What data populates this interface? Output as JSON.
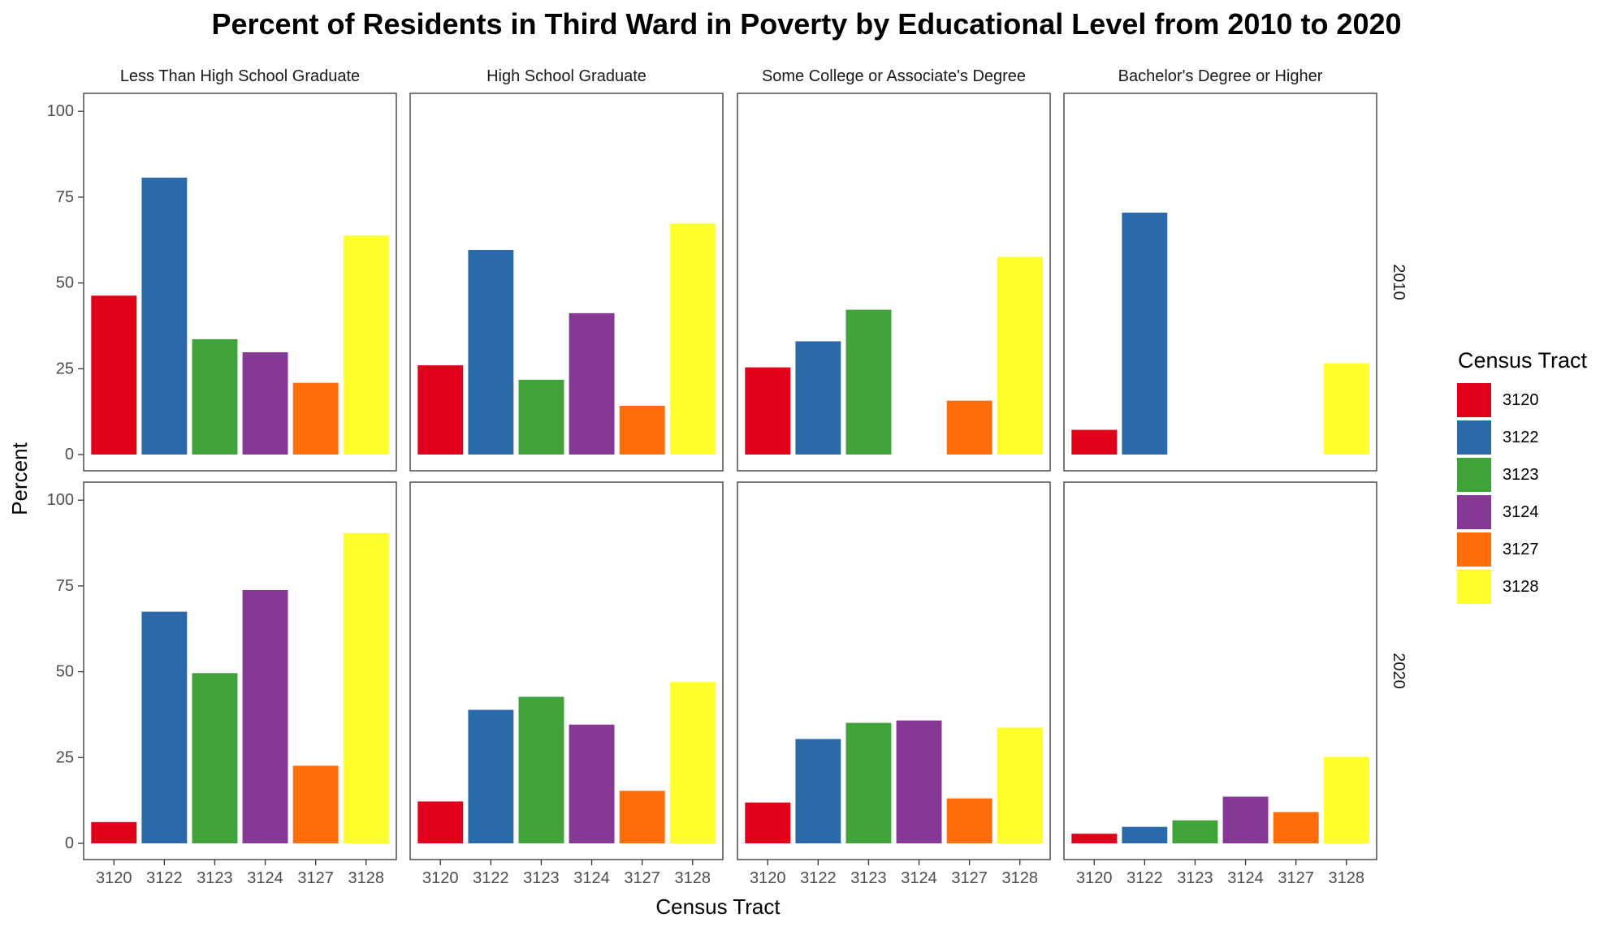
{
  "chart_data": {
    "type": "bar",
    "title": "Percent of Residents in Third Ward in Poverty by Educational Level from 2010 to 2020",
    "xlabel": "Census Tract",
    "ylabel": "Percent",
    "ylim": [
      0,
      100
    ],
    "yticks": [
      0,
      25,
      50,
      75,
      100
    ],
    "grid": false,
    "legend": {
      "title": "Census Tract",
      "position": "right"
    },
    "categories": [
      "3120",
      "3122",
      "3123",
      "3124",
      "3127",
      "3128"
    ],
    "colors": {
      "3120": "#e0001a",
      "3122": "#2b6aaa",
      "3123": "#3fa33a",
      "3124": "#853994",
      "3127": "#ff6c0a",
      "3128": "#ffff2d"
    },
    "facets": {
      "columns": [
        "Less Than High School Graduate",
        "High School Graduate",
        "Some College or Associate's Degree",
        "Bachelor's Degree or Higher"
      ],
      "rows": [
        "2010",
        "2020"
      ]
    },
    "panels": [
      {
        "row": "2010",
        "column": "Less Than High School Graduate",
        "values": [
          46.3,
          80.7,
          33.6,
          29.8,
          20.9,
          63.8
        ]
      },
      {
        "row": "2010",
        "column": "High School Graduate",
        "values": [
          26.0,
          59.6,
          21.8,
          41.2,
          14.2,
          67.3
        ]
      },
      {
        "row": "2010",
        "column": "Some College or Associate's Degree",
        "values": [
          25.4,
          33.0,
          42.2,
          null,
          15.7,
          57.6
        ]
      },
      {
        "row": "2010",
        "column": "Bachelor's Degree or Higher",
        "values": [
          7.2,
          70.5,
          null,
          null,
          null,
          26.6
        ]
      },
      {
        "row": "2020",
        "column": "Less Than High School Graduate",
        "values": [
          6.2,
          67.5,
          49.6,
          73.8,
          22.6,
          90.4
        ]
      },
      {
        "row": "2020",
        "column": "High School Graduate",
        "values": [
          12.2,
          38.9,
          42.7,
          34.6,
          15.3,
          47.0
        ]
      },
      {
        "row": "2020",
        "column": "Some College or Associate's Degree",
        "values": [
          11.9,
          30.4,
          35.1,
          35.8,
          13.1,
          33.7
        ]
      },
      {
        "row": "2020",
        "column": "Bachelor's Degree or Higher",
        "values": [
          2.8,
          4.8,
          6.7,
          13.6,
          9.1,
          25.2
        ]
      }
    ]
  }
}
